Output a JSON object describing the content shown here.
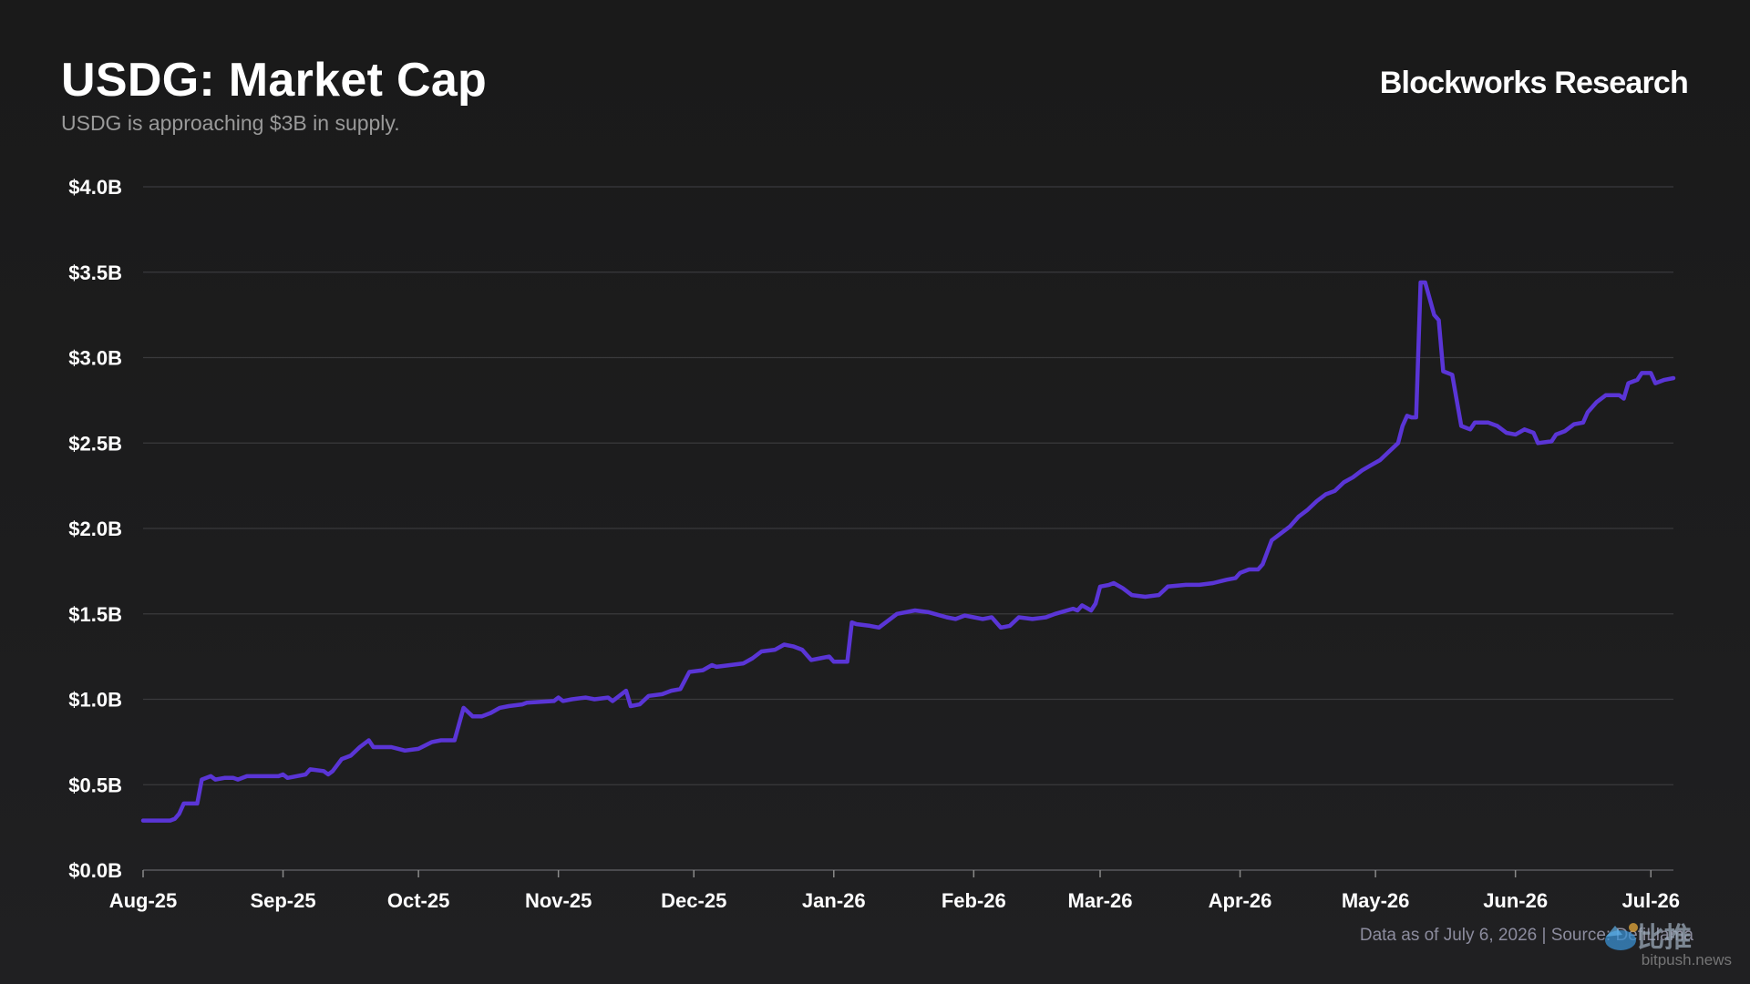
{
  "title": "USDG: Market Cap",
  "subtitle": "USDG is approaching $3B in supply.",
  "brand": "Blockworks Research",
  "footer": "Data as of July 6, 2026 | Source: DefiLlama",
  "watermark": {
    "text": "比推",
    "url": "bitpush.news"
  },
  "colors": {
    "background": "#1b1b1c",
    "line": "#5a35d6",
    "grid": "#3a3a3c",
    "text": "#ffffff",
    "subtext": "#9a9a9a"
  },
  "chart_data": {
    "type": "line",
    "title": "USDG: Market Cap",
    "xlabel": "",
    "ylabel": "",
    "ylim": [
      0,
      4.0
    ],
    "y_ticks": [
      "$0.0B",
      "$0.5B",
      "$1.0B",
      "$1.5B",
      "$2.0B",
      "$2.5B",
      "$3.0B",
      "$3.5B",
      "$4.0B"
    ],
    "x_ticks": [
      "Aug-25",
      "Sep-25",
      "Oct-25",
      "Nov-25",
      "Dec-25",
      "Jan-26",
      "Feb-26",
      "Mar-26",
      "Apr-26",
      "May-26",
      "Jun-26",
      "Jul-26"
    ],
    "x_range": [
      "2025-08-01",
      "2026-07-06"
    ],
    "grid": true,
    "series": [
      {
        "name": "",
        "unit": "USD billions",
        "points": [
          [
            "2025-08-01",
            0.29
          ],
          [
            "2025-08-07",
            0.29
          ],
          [
            "2025-08-08",
            0.3
          ],
          [
            "2025-08-09",
            0.33
          ],
          [
            "2025-08-10",
            0.39
          ],
          [
            "2025-08-13",
            0.39
          ],
          [
            "2025-08-14",
            0.53
          ],
          [
            "2025-08-16",
            0.55
          ],
          [
            "2025-08-17",
            0.53
          ],
          [
            "2025-08-19",
            0.54
          ],
          [
            "2025-08-21",
            0.54
          ],
          [
            "2025-08-22",
            0.53
          ],
          [
            "2025-08-24",
            0.55
          ],
          [
            "2025-08-31",
            0.55
          ],
          [
            "2025-09-01",
            0.56
          ],
          [
            "2025-09-02",
            0.54
          ],
          [
            "2025-09-04",
            0.55
          ],
          [
            "2025-09-06",
            0.56
          ],
          [
            "2025-09-07",
            0.59
          ],
          [
            "2025-09-10",
            0.58
          ],
          [
            "2025-09-11",
            0.56
          ],
          [
            "2025-09-12",
            0.58
          ],
          [
            "2025-09-14",
            0.65
          ],
          [
            "2025-09-16",
            0.67
          ],
          [
            "2025-09-18",
            0.72
          ],
          [
            "2025-09-20",
            0.76
          ],
          [
            "2025-09-21",
            0.72
          ],
          [
            "2025-09-25",
            0.72
          ],
          [
            "2025-09-28",
            0.7
          ],
          [
            "2025-10-01",
            0.71
          ],
          [
            "2025-10-04",
            0.75
          ],
          [
            "2025-10-06",
            0.76
          ],
          [
            "2025-10-09",
            0.76
          ],
          [
            "2025-10-11",
            0.95
          ],
          [
            "2025-10-13",
            0.9
          ],
          [
            "2025-10-15",
            0.9
          ],
          [
            "2025-10-17",
            0.92
          ],
          [
            "2025-10-19",
            0.95
          ],
          [
            "2025-10-21",
            0.96
          ],
          [
            "2025-10-24",
            0.97
          ],
          [
            "2025-10-25",
            0.98
          ],
          [
            "2025-10-31",
            0.99
          ],
          [
            "2025-11-01",
            1.01
          ],
          [
            "2025-11-02",
            0.99
          ],
          [
            "2025-11-04",
            1.0
          ],
          [
            "2025-11-07",
            1.01
          ],
          [
            "2025-11-09",
            1.0
          ],
          [
            "2025-11-12",
            1.01
          ],
          [
            "2025-11-13",
            0.99
          ],
          [
            "2025-11-16",
            1.05
          ],
          [
            "2025-11-17",
            0.96
          ],
          [
            "2025-11-19",
            0.97
          ],
          [
            "2025-11-21",
            1.02
          ],
          [
            "2025-11-24",
            1.03
          ],
          [
            "2025-11-26",
            1.05
          ],
          [
            "2025-11-28",
            1.06
          ],
          [
            "2025-11-30",
            1.16
          ],
          [
            "2025-12-03",
            1.17
          ],
          [
            "2025-12-05",
            1.2
          ],
          [
            "2025-12-06",
            1.19
          ],
          [
            "2025-12-09",
            1.2
          ],
          [
            "2025-12-12",
            1.21
          ],
          [
            "2025-12-14",
            1.24
          ],
          [
            "2025-12-16",
            1.28
          ],
          [
            "2025-12-19",
            1.29
          ],
          [
            "2025-12-21",
            1.32
          ],
          [
            "2025-12-23",
            1.31
          ],
          [
            "2025-12-25",
            1.29
          ],
          [
            "2025-12-27",
            1.23
          ],
          [
            "2025-12-29",
            1.24
          ],
          [
            "2025-12-31",
            1.25
          ],
          [
            "2026-01-01",
            1.22
          ],
          [
            "2026-01-04",
            1.22
          ],
          [
            "2026-01-05",
            1.45
          ],
          [
            "2026-01-06",
            1.44
          ],
          [
            "2026-01-09",
            1.43
          ],
          [
            "2026-01-11",
            1.42
          ],
          [
            "2026-01-13",
            1.46
          ],
          [
            "2026-01-15",
            1.5
          ],
          [
            "2026-01-19",
            1.52
          ],
          [
            "2026-01-22",
            1.51
          ],
          [
            "2026-01-26",
            1.48
          ],
          [
            "2026-01-28",
            1.47
          ],
          [
            "2026-01-30",
            1.49
          ],
          [
            "2026-02-01",
            1.48
          ],
          [
            "2026-02-03",
            1.47
          ],
          [
            "2026-02-05",
            1.48
          ],
          [
            "2026-02-07",
            1.42
          ],
          [
            "2026-02-09",
            1.43
          ],
          [
            "2026-02-11",
            1.48
          ],
          [
            "2026-02-14",
            1.47
          ],
          [
            "2026-02-17",
            1.48
          ],
          [
            "2026-02-19",
            1.5
          ],
          [
            "2026-02-23",
            1.53
          ],
          [
            "2026-02-24",
            1.52
          ],
          [
            "2026-02-25",
            1.55
          ],
          [
            "2026-02-27",
            1.52
          ],
          [
            "2026-02-28",
            1.56
          ],
          [
            "2026-03-01",
            1.66
          ],
          [
            "2026-03-03",
            1.67
          ],
          [
            "2026-03-04",
            1.68
          ],
          [
            "2026-03-06",
            1.65
          ],
          [
            "2026-03-08",
            1.61
          ],
          [
            "2026-03-11",
            1.6
          ],
          [
            "2026-03-14",
            1.61
          ],
          [
            "2026-03-16",
            1.66
          ],
          [
            "2026-03-20",
            1.67
          ],
          [
            "2026-03-23",
            1.67
          ],
          [
            "2026-03-26",
            1.68
          ],
          [
            "2026-03-29",
            1.7
          ],
          [
            "2026-03-31",
            1.71
          ],
          [
            "2026-04-01",
            1.74
          ],
          [
            "2026-04-03",
            1.76
          ],
          [
            "2026-04-05",
            1.76
          ],
          [
            "2026-04-06",
            1.79
          ],
          [
            "2026-04-08",
            1.93
          ],
          [
            "2026-04-10",
            1.97
          ],
          [
            "2026-04-12",
            2.01
          ],
          [
            "2026-04-14",
            2.07
          ],
          [
            "2026-04-16",
            2.11
          ],
          [
            "2026-04-18",
            2.16
          ],
          [
            "2026-04-20",
            2.2
          ],
          [
            "2026-04-22",
            2.22
          ],
          [
            "2026-04-24",
            2.27
          ],
          [
            "2026-04-26",
            2.3
          ],
          [
            "2026-04-28",
            2.34
          ],
          [
            "2026-04-30",
            2.37
          ],
          [
            "2026-05-02",
            2.4
          ],
          [
            "2026-05-04",
            2.45
          ],
          [
            "2026-05-06",
            2.5
          ],
          [
            "2026-05-07",
            2.6
          ],
          [
            "2026-05-08",
            2.66
          ],
          [
            "2026-05-09",
            2.65
          ],
          [
            "2026-05-10",
            2.65
          ],
          [
            "2026-05-11",
            3.44
          ],
          [
            "2026-05-12",
            3.44
          ],
          [
            "2026-05-14",
            3.25
          ],
          [
            "2026-05-15",
            3.22
          ],
          [
            "2026-05-16",
            2.92
          ],
          [
            "2026-05-18",
            2.9
          ],
          [
            "2026-05-20",
            2.6
          ],
          [
            "2026-05-22",
            2.58
          ],
          [
            "2026-05-23",
            2.62
          ],
          [
            "2026-05-26",
            2.62
          ],
          [
            "2026-05-28",
            2.6
          ],
          [
            "2026-05-30",
            2.56
          ],
          [
            "2026-06-01",
            2.55
          ],
          [
            "2026-06-03",
            2.58
          ],
          [
            "2026-06-05",
            2.56
          ],
          [
            "2026-06-06",
            2.5
          ],
          [
            "2026-06-09",
            2.51
          ],
          [
            "2026-06-10",
            2.55
          ],
          [
            "2026-06-12",
            2.57
          ],
          [
            "2026-06-14",
            2.61
          ],
          [
            "2026-06-16",
            2.62
          ],
          [
            "2026-06-17",
            2.68
          ],
          [
            "2026-06-19",
            2.74
          ],
          [
            "2026-06-21",
            2.78
          ],
          [
            "2026-06-24",
            2.78
          ],
          [
            "2026-06-25",
            2.76
          ],
          [
            "2026-06-26",
            2.85
          ],
          [
            "2026-06-28",
            2.87
          ],
          [
            "2026-06-29",
            2.91
          ],
          [
            "2026-07-01",
            2.91
          ],
          [
            "2026-07-02",
            2.85
          ],
          [
            "2026-07-04",
            2.87
          ],
          [
            "2026-07-06",
            2.88
          ]
        ]
      }
    ]
  }
}
